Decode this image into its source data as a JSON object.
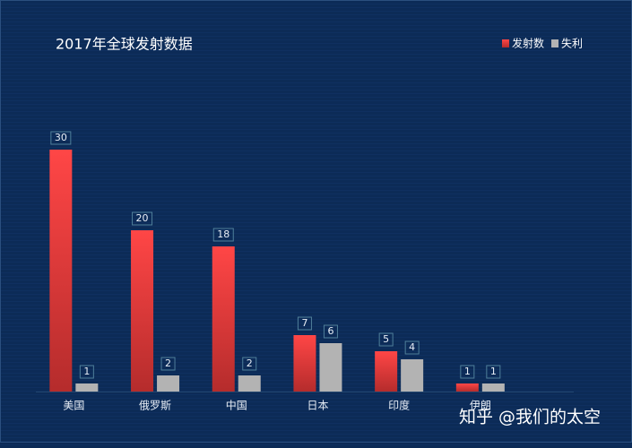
{
  "chart_data": {
    "type": "bar",
    "title": "2017年全球发射数据",
    "categories": [
      "美国",
      "俄罗斯",
      "中国",
      "日本",
      "印度",
      "伊朗"
    ],
    "series": [
      {
        "name": "发射数",
        "color": "#f24444",
        "values": [
          30,
          20,
          18,
          7,
          5,
          1
        ]
      },
      {
        "name": "失利",
        "color": "#b3b3b3",
        "values": [
          1,
          2,
          2,
          6,
          4,
          1
        ]
      }
    ],
    "legend": "top-right",
    "watermark": "知乎 @我们的太空"
  }
}
